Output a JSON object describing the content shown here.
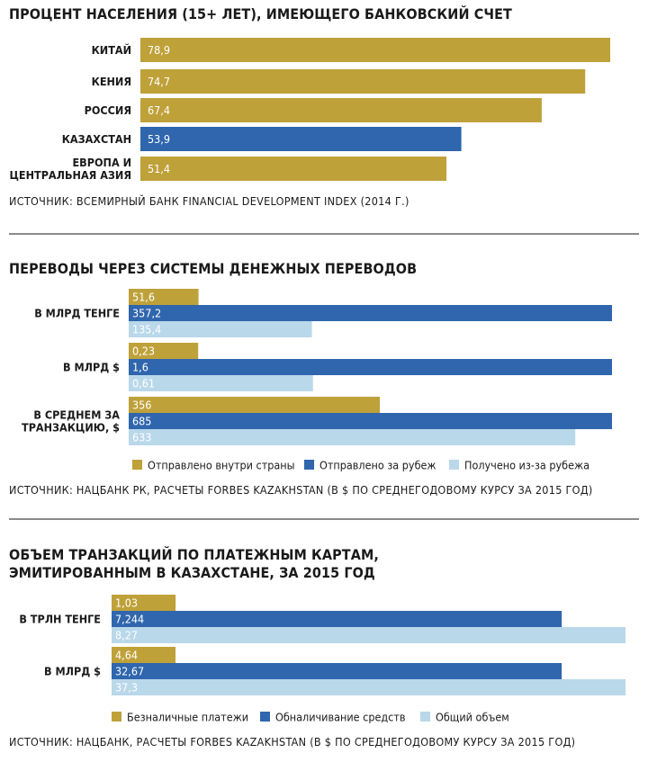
{
  "colors": {
    "gold": "#bfa13a",
    "blue": "#2f66ad",
    "light": "#b9d8ea"
  },
  "chart_data": [
    {
      "type": "bar",
      "title": "ПРОЦЕНТ НАСЕЛЕНИЯ (15+ ЛЕТ), ИМЕЮЩЕГО БАНКОВСКИЙ СЧЕТ",
      "categories": [
        "КИТАЙ",
        "КЕНИЯ",
        "РОССИЯ",
        "КАЗАХСТАН",
        "ЕВРОПА И ЦЕНТРАЛЬНАЯ АЗИЯ"
      ],
      "values": [
        78.9,
        74.7,
        67.4,
        53.9,
        51.4
      ],
      "value_labels": [
        "78,9",
        "74,7",
        "67,4",
        "53,9",
        "51,4"
      ],
      "highlight": "КАЗАХСТАН",
      "source": "ИСТОЧНИК: ВСЕМИРНЫЙ БАНК FINANCIAL DEVELOPMENT INDEX (2014 Г.)"
    },
    {
      "type": "bar",
      "title": "ПЕРЕВОДЫ ЧЕРЕЗ СИСТЕМЫ ДЕНЕЖНЫХ ПЕРЕВОДОВ",
      "categories": [
        "В МЛРД ТЕНГЕ",
        "В МЛРД $",
        "В СРЕДНЕМ ЗА ТРАНЗАКЦИЮ, $"
      ],
      "series": [
        {
          "name": "Отправлено внутри страны",
          "values": [
            51.6,
            0.23,
            356
          ],
          "labels": [
            "51,6",
            "0,23",
            "356"
          ]
        },
        {
          "name": "Отправлено за рубеж",
          "values": [
            357.2,
            1.6,
            685
          ],
          "labels": [
            "357,2",
            "1,6",
            "685"
          ]
        },
        {
          "name": "Получено из-за рубежа",
          "values": [
            135.4,
            0.61,
            633
          ],
          "labels": [
            "135,4",
            "0,61",
            "633"
          ]
        }
      ],
      "source": "ИСТОЧНИК: НАЦБАНК РК, РАСЧЕТЫ FORBES KAZAKHSTAN (В $ ПО СРЕДНЕГОДОВОМУ КУРСУ ЗА 2015 ГОД)"
    },
    {
      "type": "bar",
      "title": "ОБЪЕМ ТРАНЗАКЦИЙ ПО ПЛАТЕЖНЫМ КАРТАМ, ЭМИТИРОВАННЫМ В КАЗАХСТАНЕ, ЗА 2015 ГОД",
      "categories": [
        "В ТРЛН ТЕНГЕ",
        "В МЛРД $"
      ],
      "series": [
        {
          "name": "Безналичные платежи",
          "values": [
            1.03,
            4.64
          ],
          "labels": [
            "1,03",
            "4,64"
          ]
        },
        {
          "name": "Обналичивание средств",
          "values": [
            7.244,
            32.67
          ],
          "labels": [
            "7,244",
            "32,67"
          ]
        },
        {
          "name": "Общий объем",
          "values": [
            8.27,
            37.3
          ],
          "labels": [
            "8,27",
            "37,3"
          ]
        }
      ],
      "source": "ИСТОЧНИК: НАЦБАНК, РАСЧЕТЫ FORBES KAZAKHSTAN (В $ ПО СРЕДНЕГОДОВОМУ КУРСУ ЗА 2015 ГОД)"
    }
  ]
}
